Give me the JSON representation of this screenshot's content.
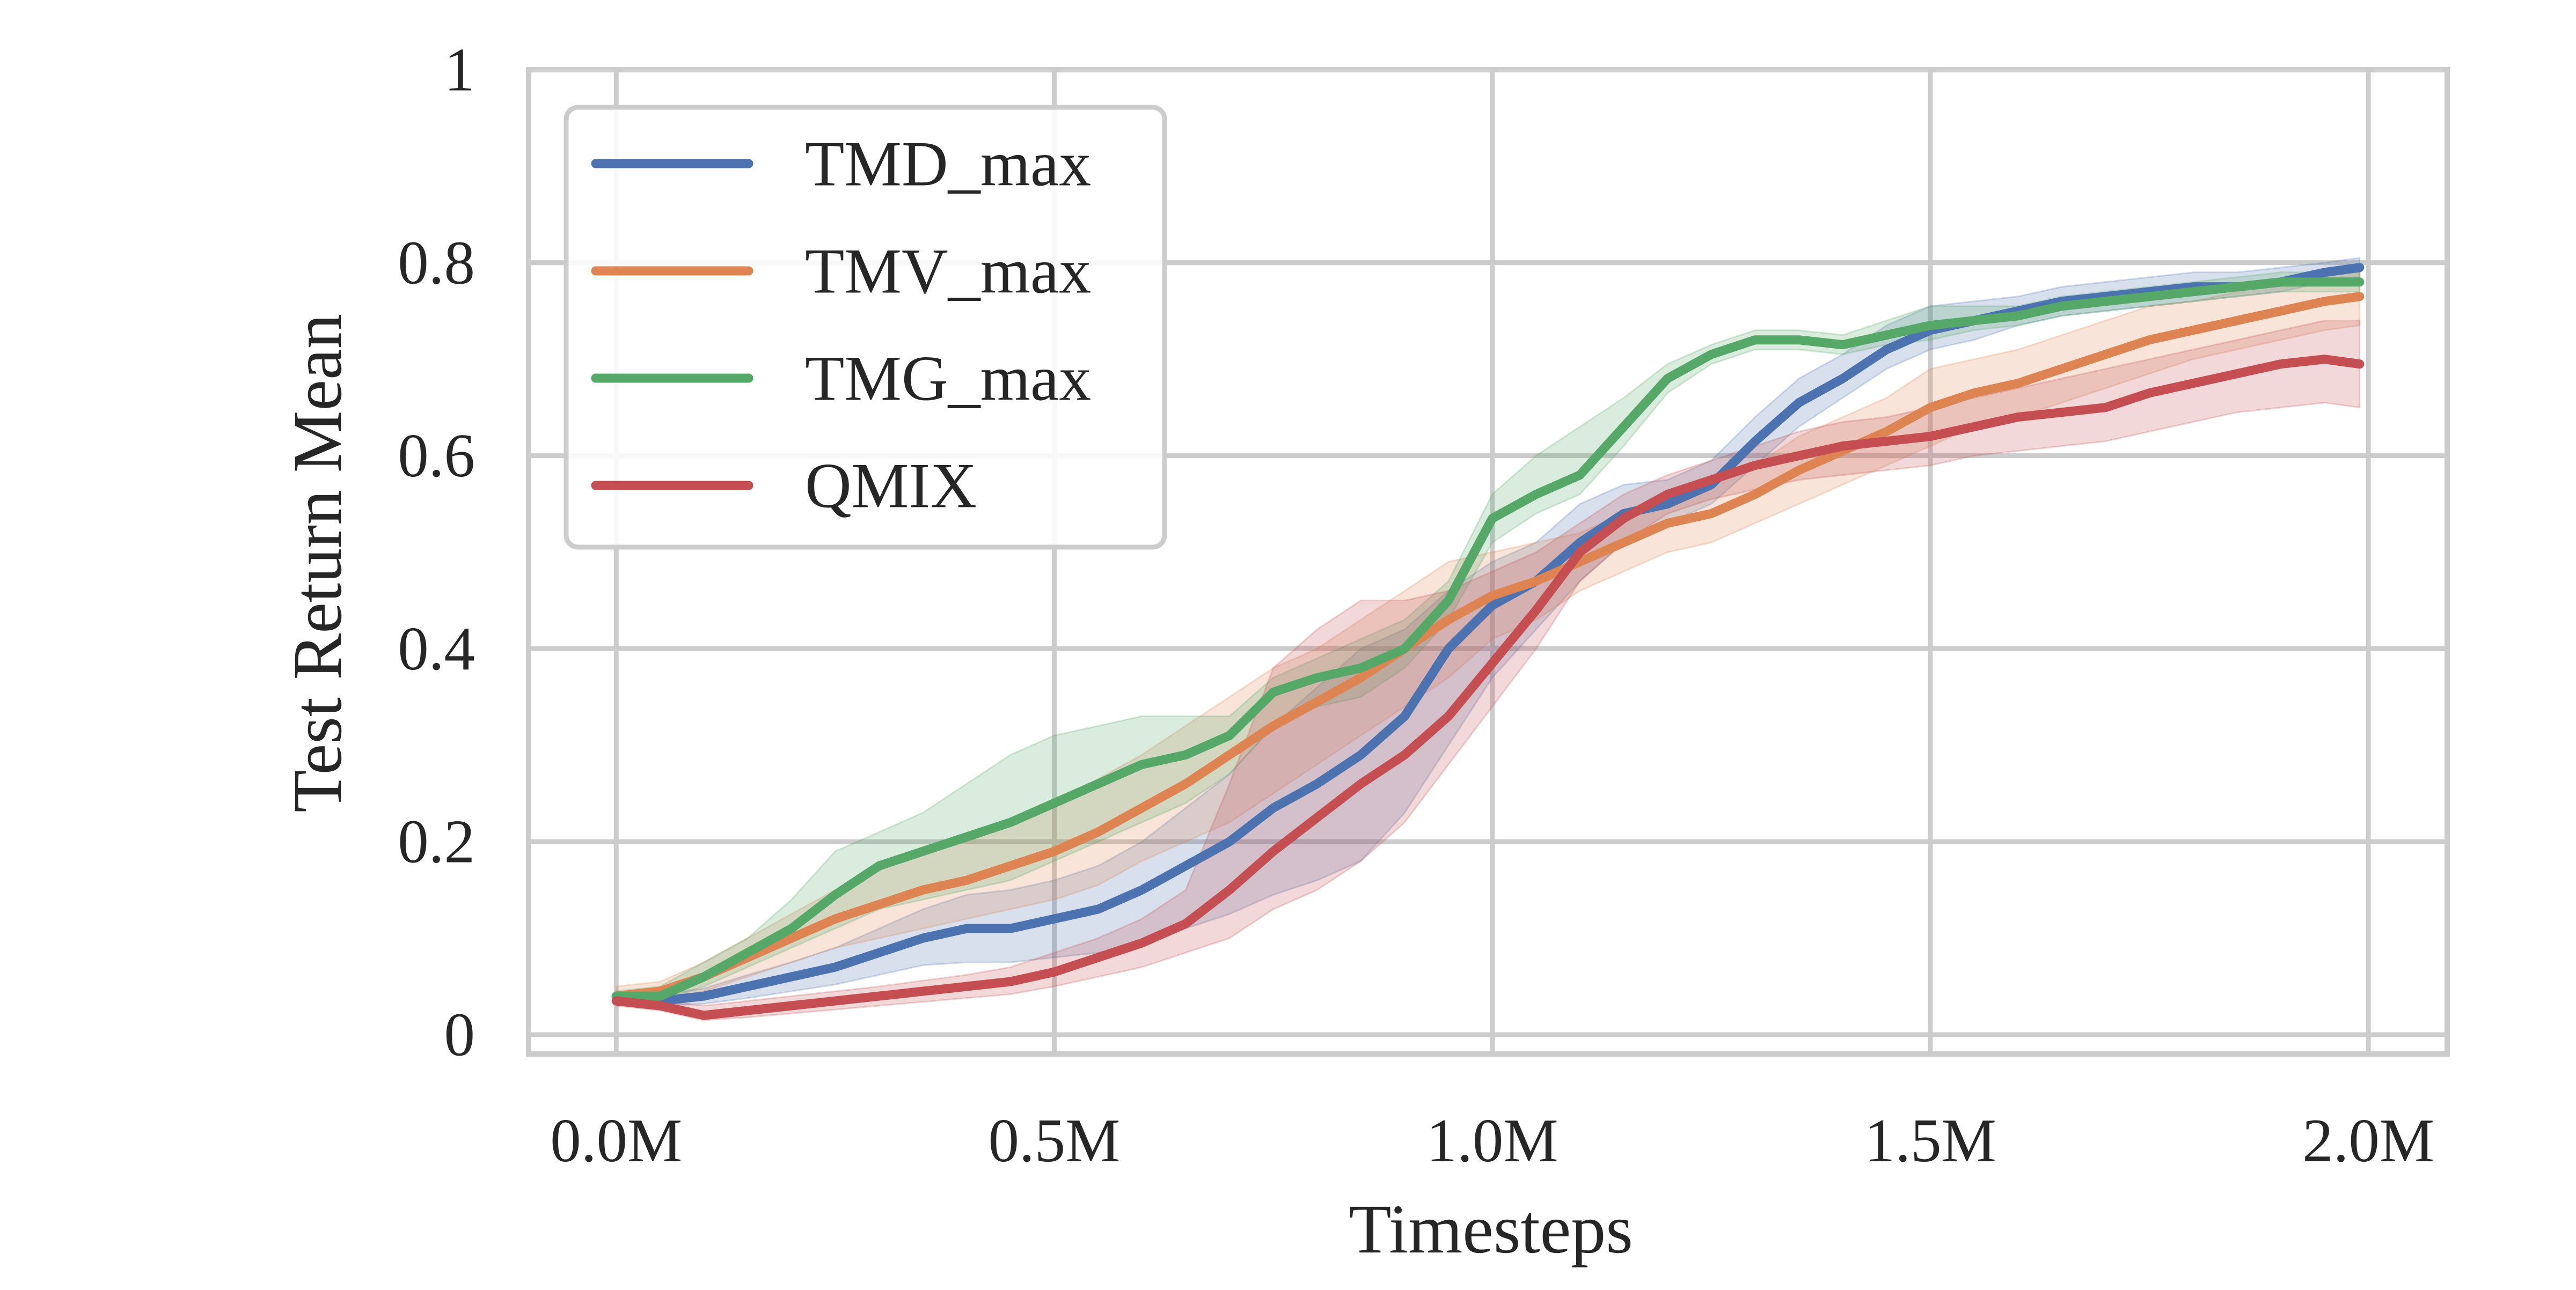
{
  "chart_data": {
    "type": "line",
    "xlabel": "Timesteps",
    "ylabel": "Test Return Mean",
    "xlim": [
      -0.1,
      2.09
    ],
    "ylim": [
      -0.02,
      1.0
    ],
    "xticks": [
      0.0,
      0.5,
      1.0,
      1.5,
      2.0
    ],
    "xtick_labels": [
      "0.0M",
      "0.5M",
      "1.0M",
      "1.5M",
      "2.0M"
    ],
    "yticks": [
      0,
      0.2,
      0.4,
      0.6,
      0.8,
      1.0
    ],
    "ytick_labels": [
      "0",
      "0.2",
      "0.4",
      "0.6",
      "0.8",
      "1"
    ],
    "grid": true,
    "legend_position": "top-left",
    "series": [
      {
        "name": "TMD_max",
        "color": "#4c72b0",
        "x": [
          0.0,
          0.05,
          0.1,
          0.15,
          0.2,
          0.25,
          0.3,
          0.35,
          0.4,
          0.45,
          0.5,
          0.55,
          0.6,
          0.65,
          0.7,
          0.75,
          0.8,
          0.85,
          0.9,
          0.95,
          1.0,
          1.05,
          1.1,
          1.15,
          1.2,
          1.25,
          1.3,
          1.35,
          1.4,
          1.45,
          1.5,
          1.55,
          1.6,
          1.65,
          1.7,
          1.75,
          1.8,
          1.85,
          1.9,
          1.95,
          1.99
        ],
        "y": [
          0.04,
          0.035,
          0.04,
          0.05,
          0.06,
          0.07,
          0.085,
          0.1,
          0.11,
          0.11,
          0.12,
          0.13,
          0.15,
          0.175,
          0.2,
          0.235,
          0.26,
          0.29,
          0.33,
          0.4,
          0.445,
          0.47,
          0.51,
          0.54,
          0.55,
          0.57,
          0.615,
          0.655,
          0.68,
          0.71,
          0.73,
          0.74,
          0.75,
          0.76,
          0.765,
          0.77,
          0.775,
          0.775,
          0.78,
          0.79,
          0.795
        ],
        "lower": [
          0.035,
          0.03,
          0.032,
          0.038,
          0.045,
          0.052,
          0.062,
          0.072,
          0.075,
          0.075,
          0.08,
          0.085,
          0.095,
          0.11,
          0.125,
          0.145,
          0.16,
          0.18,
          0.23,
          0.3,
          0.37,
          0.42,
          0.47,
          0.51,
          0.53,
          0.55,
          0.59,
          0.63,
          0.66,
          0.69,
          0.71,
          0.72,
          0.735,
          0.745,
          0.75,
          0.755,
          0.76,
          0.765,
          0.77,
          0.78,
          0.785
        ],
        "upper": [
          0.045,
          0.042,
          0.048,
          0.062,
          0.075,
          0.09,
          0.11,
          0.13,
          0.145,
          0.15,
          0.16,
          0.175,
          0.2,
          0.235,
          0.27,
          0.32,
          0.36,
          0.4,
          0.42,
          0.46,
          0.49,
          0.51,
          0.55,
          0.57,
          0.575,
          0.595,
          0.64,
          0.68,
          0.705,
          0.735,
          0.755,
          0.76,
          0.765,
          0.775,
          0.78,
          0.785,
          0.79,
          0.79,
          0.795,
          0.8,
          0.805
        ]
      },
      {
        "name": "TMV_max",
        "color": "#dd8452",
        "x": [
          0.0,
          0.05,
          0.1,
          0.15,
          0.2,
          0.25,
          0.3,
          0.35,
          0.4,
          0.45,
          0.5,
          0.55,
          0.6,
          0.65,
          0.7,
          0.75,
          0.8,
          0.85,
          0.9,
          0.95,
          1.0,
          1.05,
          1.1,
          1.15,
          1.2,
          1.25,
          1.3,
          1.35,
          1.4,
          1.45,
          1.5,
          1.55,
          1.6,
          1.65,
          1.7,
          1.75,
          1.8,
          1.85,
          1.9,
          1.95,
          1.99
        ],
        "y": [
          0.04,
          0.045,
          0.06,
          0.08,
          0.1,
          0.12,
          0.135,
          0.15,
          0.16,
          0.175,
          0.19,
          0.21,
          0.235,
          0.26,
          0.29,
          0.32,
          0.345,
          0.37,
          0.4,
          0.43,
          0.455,
          0.47,
          0.49,
          0.51,
          0.53,
          0.54,
          0.56,
          0.585,
          0.605,
          0.625,
          0.65,
          0.665,
          0.675,
          0.69,
          0.705,
          0.72,
          0.73,
          0.74,
          0.75,
          0.76,
          0.765
        ],
        "lower": [
          0.03,
          0.035,
          0.045,
          0.06,
          0.075,
          0.09,
          0.1,
          0.11,
          0.12,
          0.13,
          0.14,
          0.155,
          0.18,
          0.2,
          0.22,
          0.25,
          0.28,
          0.31,
          0.34,
          0.37,
          0.41,
          0.43,
          0.46,
          0.48,
          0.5,
          0.51,
          0.53,
          0.55,
          0.57,
          0.59,
          0.61,
          0.63,
          0.64,
          0.655,
          0.67,
          0.685,
          0.7,
          0.71,
          0.72,
          0.73,
          0.735
        ],
        "upper": [
          0.05,
          0.055,
          0.075,
          0.1,
          0.125,
          0.15,
          0.17,
          0.19,
          0.2,
          0.22,
          0.24,
          0.265,
          0.29,
          0.32,
          0.35,
          0.38,
          0.4,
          0.43,
          0.46,
          0.49,
          0.5,
          0.51,
          0.52,
          0.54,
          0.56,
          0.57,
          0.59,
          0.62,
          0.64,
          0.66,
          0.69,
          0.7,
          0.71,
          0.725,
          0.74,
          0.755,
          0.76,
          0.77,
          0.78,
          0.79,
          0.795
        ]
      },
      {
        "name": "TMG_max",
        "color": "#55a868",
        "x": [
          0.0,
          0.05,
          0.1,
          0.15,
          0.2,
          0.25,
          0.3,
          0.35,
          0.4,
          0.45,
          0.5,
          0.55,
          0.6,
          0.65,
          0.7,
          0.75,
          0.8,
          0.85,
          0.9,
          0.95,
          1.0,
          1.05,
          1.1,
          1.15,
          1.2,
          1.25,
          1.3,
          1.35,
          1.4,
          1.45,
          1.5,
          1.55,
          1.6,
          1.65,
          1.7,
          1.75,
          1.8,
          1.85,
          1.9,
          1.95,
          1.99
        ],
        "y": [
          0.04,
          0.04,
          0.06,
          0.085,
          0.11,
          0.145,
          0.175,
          0.19,
          0.205,
          0.22,
          0.24,
          0.26,
          0.28,
          0.29,
          0.31,
          0.355,
          0.37,
          0.38,
          0.4,
          0.45,
          0.535,
          0.56,
          0.58,
          0.63,
          0.68,
          0.705,
          0.72,
          0.72,
          0.715,
          0.725,
          0.735,
          0.74,
          0.745,
          0.755,
          0.76,
          0.765,
          0.77,
          0.775,
          0.78,
          0.78,
          0.78
        ],
        "lower": [
          0.035,
          0.035,
          0.05,
          0.07,
          0.09,
          0.11,
          0.13,
          0.14,
          0.15,
          0.16,
          0.18,
          0.2,
          0.22,
          0.24,
          0.27,
          0.32,
          0.34,
          0.35,
          0.38,
          0.43,
          0.51,
          0.54,
          0.56,
          0.61,
          0.665,
          0.695,
          0.71,
          0.71,
          0.705,
          0.715,
          0.72,
          0.73,
          0.735,
          0.745,
          0.75,
          0.755,
          0.76,
          0.765,
          0.77,
          0.77,
          0.77
        ],
        "upper": [
          0.045,
          0.05,
          0.075,
          0.1,
          0.14,
          0.19,
          0.21,
          0.23,
          0.26,
          0.29,
          0.31,
          0.32,
          0.33,
          0.33,
          0.33,
          0.37,
          0.39,
          0.41,
          0.43,
          0.47,
          0.56,
          0.6,
          0.63,
          0.66,
          0.695,
          0.715,
          0.73,
          0.73,
          0.725,
          0.74,
          0.755,
          0.755,
          0.755,
          0.765,
          0.77,
          0.775,
          0.78,
          0.785,
          0.79,
          0.79,
          0.79
        ]
      },
      {
        "name": "QMIX",
        "color": "#c44e52",
        "x": [
          0.0,
          0.05,
          0.1,
          0.15,
          0.2,
          0.25,
          0.3,
          0.35,
          0.4,
          0.45,
          0.5,
          0.55,
          0.6,
          0.65,
          0.7,
          0.75,
          0.8,
          0.85,
          0.9,
          0.95,
          1.0,
          1.05,
          1.1,
          1.15,
          1.2,
          1.25,
          1.3,
          1.35,
          1.4,
          1.45,
          1.5,
          1.55,
          1.6,
          1.65,
          1.7,
          1.75,
          1.8,
          1.85,
          1.9,
          1.95,
          1.99
        ],
        "y": [
          0.035,
          0.03,
          0.02,
          0.025,
          0.03,
          0.035,
          0.04,
          0.045,
          0.05,
          0.055,
          0.065,
          0.08,
          0.095,
          0.115,
          0.15,
          0.19,
          0.225,
          0.26,
          0.29,
          0.33,
          0.385,
          0.44,
          0.5,
          0.535,
          0.56,
          0.575,
          0.59,
          0.6,
          0.61,
          0.615,
          0.62,
          0.63,
          0.64,
          0.645,
          0.65,
          0.665,
          0.675,
          0.685,
          0.695,
          0.7,
          0.695
        ],
        "lower": [
          0.03,
          0.025,
          0.015,
          0.018,
          0.022,
          0.026,
          0.03,
          0.034,
          0.038,
          0.042,
          0.05,
          0.06,
          0.07,
          0.085,
          0.1,
          0.13,
          0.15,
          0.18,
          0.22,
          0.28,
          0.34,
          0.4,
          0.47,
          0.51,
          0.54,
          0.555,
          0.565,
          0.575,
          0.58,
          0.585,
          0.59,
          0.6,
          0.605,
          0.61,
          0.615,
          0.625,
          0.635,
          0.645,
          0.65,
          0.655,
          0.65
        ],
        "upper": [
          0.04,
          0.035,
          0.03,
          0.035,
          0.04,
          0.045,
          0.05,
          0.056,
          0.062,
          0.07,
          0.085,
          0.1,
          0.12,
          0.15,
          0.26,
          0.38,
          0.42,
          0.45,
          0.45,
          0.46,
          0.48,
          0.5,
          0.53,
          0.56,
          0.58,
          0.595,
          0.61,
          0.625,
          0.635,
          0.64,
          0.65,
          0.66,
          0.67,
          0.68,
          0.69,
          0.7,
          0.71,
          0.72,
          0.73,
          0.74,
          0.74
        ]
      }
    ]
  }
}
